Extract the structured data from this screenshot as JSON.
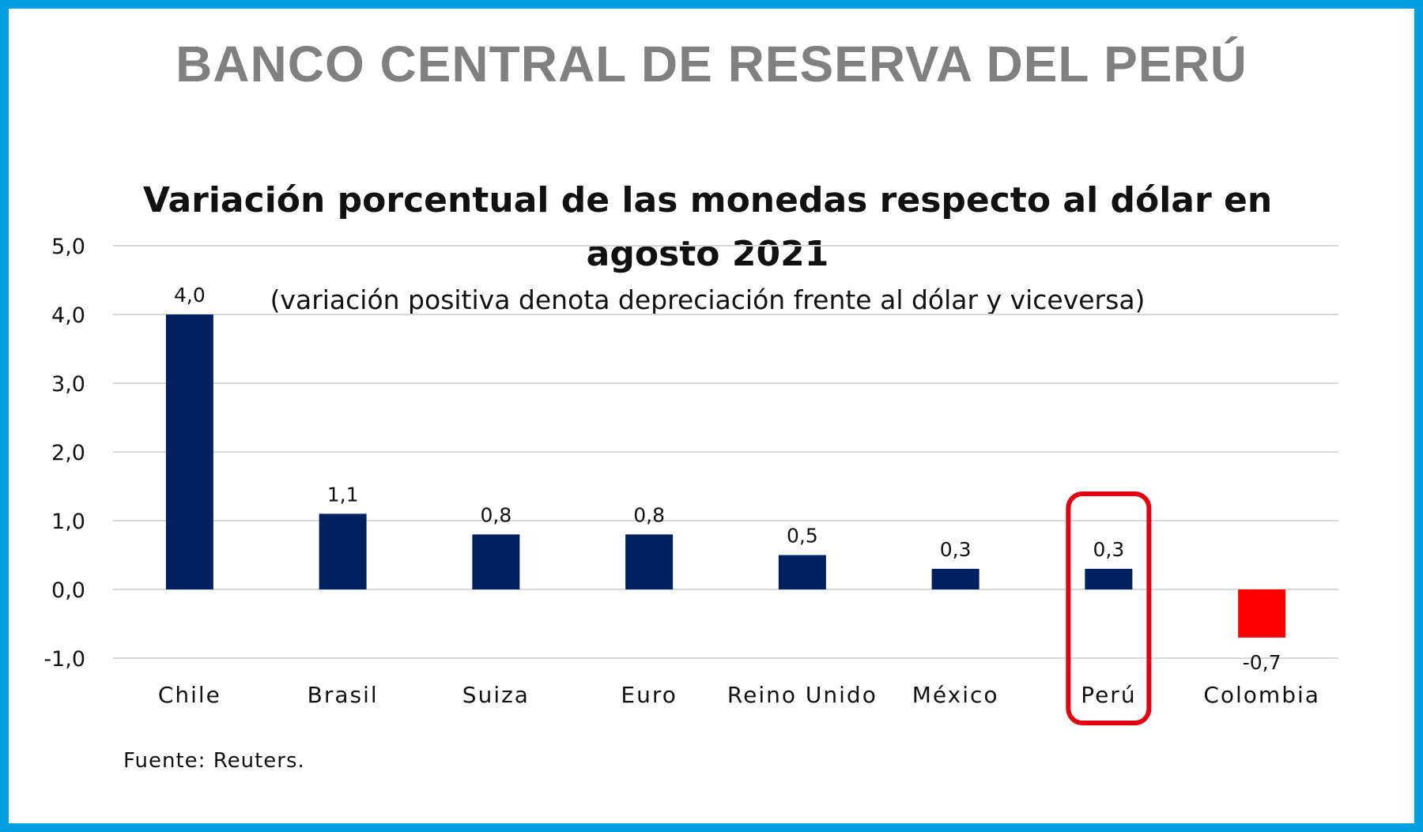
{
  "header": {
    "bank_name": "BANCO CENTRAL DE RESERVA DEL PERÚ"
  },
  "colors": {
    "frame": "#00a0e3",
    "positive_bar": "#002060",
    "negative_bar": "#ff0000",
    "highlight": "#e3000f",
    "grid": "#d9d9d9"
  },
  "chart_data": {
    "type": "bar",
    "title_line1": "Variación porcentual de las monedas respecto al dólar en",
    "title_line2": "agosto 2021",
    "subtitle": "(variación positiva denota depreciación frente al dólar y viceversa)",
    "xlabel": "",
    "ylabel": "",
    "categories": [
      "Chile",
      "Brasil",
      "Suiza",
      "Euro",
      "Reino Unido",
      "México",
      "Perú",
      "Colombia"
    ],
    "values": [
      4.0,
      1.1,
      0.8,
      0.8,
      0.5,
      0.3,
      0.3,
      -0.7
    ],
    "value_labels": [
      "4,0",
      "1,1",
      "0,8",
      "0,8",
      "0,5",
      "0,3",
      "0,3",
      "-0,7"
    ],
    "ylim": [
      -1.0,
      5.0
    ],
    "yticks": [
      5.0,
      4.0,
      3.0,
      2.0,
      1.0,
      0.0,
      -1.0
    ],
    "ytick_labels": [
      "5,0",
      "4,0",
      "3,0",
      "2,0",
      "1,0",
      "0,0",
      "-1,0"
    ],
    "grid": true,
    "legend": "none",
    "highlighted_category": "Perú",
    "source": "Fuente: Reuters."
  }
}
